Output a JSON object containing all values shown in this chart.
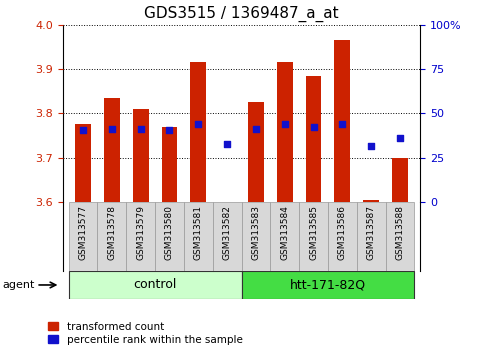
{
  "title": "GDS3515 / 1369487_a_at",
  "samples": [
    "GSM313577",
    "GSM313578",
    "GSM313579",
    "GSM313580",
    "GSM313581",
    "GSM313582",
    "GSM313583",
    "GSM313584",
    "GSM313585",
    "GSM313586",
    "GSM313587",
    "GSM313588"
  ],
  "bar_values": [
    3.775,
    3.835,
    3.81,
    3.77,
    3.915,
    3.6,
    3.825,
    3.915,
    3.885,
    3.965,
    3.605,
    3.7
  ],
  "bar_base": 3.6,
  "blue_dot_values": [
    3.762,
    3.765,
    3.765,
    3.762,
    3.775,
    3.73,
    3.765,
    3.775,
    3.77,
    3.775,
    3.725,
    3.745
  ],
  "bar_color": "#cc2200",
  "dot_color": "#1111cc",
  "ylim_left": [
    3.6,
    4.0
  ],
  "ylim_right": [
    0,
    100
  ],
  "yticks_left": [
    3.6,
    3.7,
    3.8,
    3.9,
    4.0
  ],
  "yticks_right": [
    0,
    25,
    50,
    75,
    100
  ],
  "yticklabels_right": [
    "0",
    "25",
    "50",
    "75",
    "100%"
  ],
  "groups": [
    {
      "label": "control",
      "start": 0,
      "end": 5,
      "facecolor": "#ccffcc",
      "edgecolor": "#333333"
    },
    {
      "label": "htt-171-82Q",
      "start": 6,
      "end": 11,
      "facecolor": "#44dd44",
      "edgecolor": "#333333"
    }
  ],
  "agent_label": "agent",
  "legend_items": [
    {
      "label": "transformed count",
      "color": "#cc2200"
    },
    {
      "label": "percentile rank within the sample",
      "color": "#1111cc"
    }
  ],
  "bar_width": 0.55,
  "tick_color_left": "#cc2200",
  "tick_color_right": "#0000cc",
  "title_fontsize": 11,
  "tick_fontsize": 8,
  "sample_fontsize": 6.5,
  "group_fontsize": 9
}
